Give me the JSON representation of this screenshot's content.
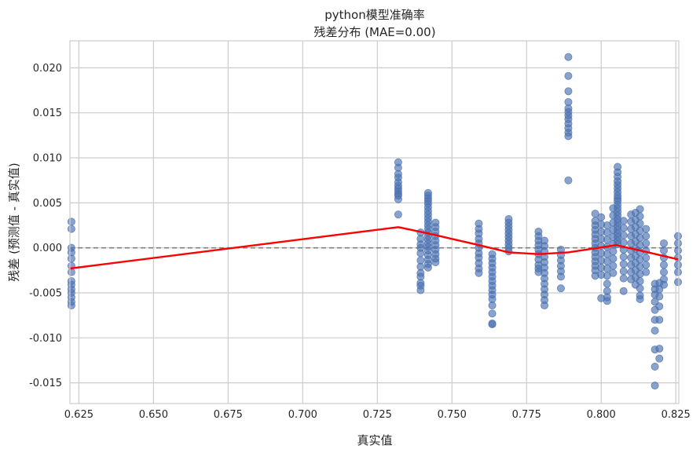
{
  "chart_data": {
    "type": "scatter",
    "title": "python模型准确率",
    "subtitle": "残差分布 (MAE=0.00)",
    "xlabel": "真实值",
    "ylabel": "残差 (预测值 - 真实值)",
    "xlim": [
      0.622,
      0.826
    ],
    "ylim": [
      -0.0173,
      0.023
    ],
    "grid": true,
    "x_ticks": [
      0.625,
      0.65,
      0.675,
      0.7,
      0.725,
      0.75,
      0.775,
      0.8,
      0.825
    ],
    "x_tick_labels": [
      "0.625",
      "0.650",
      "0.675",
      "0.700",
      "0.725",
      "0.750",
      "0.775",
      "0.800",
      "0.825"
    ],
    "y_ticks": [
      -0.015,
      -0.01,
      -0.005,
      0.0,
      0.005,
      0.01,
      0.015,
      0.02
    ],
    "y_tick_labels": [
      "-0.015",
      "-0.010",
      "-0.005",
      "0.000",
      "0.005",
      "0.010",
      "0.015",
      "0.020"
    ],
    "reference_line": {
      "y": 0.0,
      "style": "dashed",
      "color": "#808080"
    },
    "colors": {
      "points": "#4c72b0",
      "trend": "#ff0000",
      "grid": "#cccccc",
      "spine": "#cccccc"
    },
    "point_clusters": [
      {
        "x": 0.6225,
        "y": [
          0.0029,
          0.0021,
          0.0,
          -0.0005,
          -0.0012,
          -0.002,
          -0.0027,
          -0.0037,
          -0.0041,
          -0.0046,
          -0.005,
          -0.0055,
          -0.006,
          -0.0064
        ]
      },
      {
        "x": 0.732,
        "y": [
          0.0095,
          0.0089,
          0.0082,
          0.0078,
          0.0073,
          0.0069,
          0.0066,
          0.0063,
          0.006,
          0.0058,
          0.0054,
          0.0037
        ]
      },
      {
        "x": 0.7395,
        "y": [
          0.0017,
          0.001,
          0.0004,
          0.0,
          -0.0006,
          -0.0014,
          -0.0021,
          -0.0028,
          -0.0032,
          -0.0039,
          -0.0042,
          -0.0047
        ]
      },
      {
        "x": 0.742,
        "y": [
          0.0061,
          0.0058,
          0.0055,
          0.0052,
          0.0049,
          0.0045,
          0.0041,
          0.0037,
          0.0033,
          0.0029,
          0.0025,
          0.0021,
          0.0017,
          0.0013,
          0.0009,
          0.0005,
          0.0001,
          -0.0003,
          -0.0008,
          -0.0013,
          -0.0018,
          -0.0022
        ]
      },
      {
        "x": 0.7445,
        "y": [
          0.0028,
          0.0023,
          0.0018,
          0.0013,
          0.0008,
          0.0003,
          -0.0002,
          -0.0007,
          -0.0012,
          -0.0016
        ]
      },
      {
        "x": 0.759,
        "y": [
          0.0027,
          0.0021,
          0.0016,
          0.001,
          0.0005,
          0.0,
          -0.0006,
          -0.0011,
          -0.0017,
          -0.0023,
          -0.0028
        ]
      },
      {
        "x": 0.7635,
        "y": [
          -0.0007,
          -0.0012,
          -0.0017,
          -0.0022,
          -0.0027,
          -0.0032,
          -0.0037,
          -0.0042,
          -0.0047,
          -0.0052,
          -0.0057,
          -0.0064,
          -0.0073,
          -0.0084,
          -0.0085
        ]
      },
      {
        "x": 0.769,
        "y": [
          0.0032,
          0.0028,
          0.0024,
          0.002,
          0.0016,
          0.0012,
          0.0008,
          0.0004,
          0.0,
          -0.0004
        ]
      },
      {
        "x": 0.779,
        "y": [
          0.0018,
          0.0013,
          0.0008,
          0.0003,
          -0.0002,
          -0.0007,
          -0.0013,
          -0.0019,
          -0.0023,
          -0.0027
        ]
      },
      {
        "x": 0.781,
        "y": [
          0.0008,
          0.0002,
          -0.0004,
          -0.001,
          -0.0016,
          -0.0022,
          -0.0028,
          -0.0034,
          -0.004,
          -0.0046,
          -0.0052,
          -0.0058,
          -0.0064
        ]
      },
      {
        "x": 0.7865,
        "y": [
          -0.0002,
          -0.0008,
          -0.0014,
          -0.002,
          -0.0026,
          -0.0032,
          -0.0045
        ]
      },
      {
        "x": 0.789,
        "y": [
          0.0212,
          0.0191,
          0.0174,
          0.0162,
          0.0155,
          0.0151,
          0.0147,
          0.0143,
          0.0138,
          0.0133,
          0.0128,
          0.0124,
          0.0075
        ]
      },
      {
        "x": 0.798,
        "y": [
          0.0038,
          0.003,
          0.0025,
          0.002,
          0.0015,
          0.001,
          0.0005,
          0.0,
          -0.0005,
          -0.001,
          -0.0015,
          -0.002,
          -0.0025,
          -0.0031
        ]
      },
      {
        "x": 0.8,
        "y": [
          0.0034,
          0.0026,
          0.0018,
          0.001,
          0.0002,
          -0.0006,
          -0.0014,
          -0.0022,
          -0.003,
          -0.0056
        ]
      },
      {
        "x": 0.802,
        "y": [
          0.0025,
          0.0017,
          0.0009,
          0.0001,
          -0.0007,
          -0.0015,
          -0.0023,
          -0.0031,
          -0.004,
          -0.0048,
          -0.0055,
          -0.0059
        ]
      },
      {
        "x": 0.804,
        "y": [
          0.0044,
          0.0036,
          0.0028,
          0.002,
          0.0012,
          0.0004,
          -0.0004,
          -0.0012,
          -0.002,
          -0.0028
        ]
      },
      {
        "x": 0.8055,
        "y": [
          0.009,
          0.0084,
          0.0079,
          0.0074,
          0.007,
          0.0066,
          0.0062,
          0.0058,
          0.0055,
          0.0052,
          0.0048,
          0.0044,
          0.004,
          0.0036,
          0.0032,
          0.0028,
          0.0024,
          0.002,
          0.0016,
          0.0012,
          0.0008,
          0.0004
        ]
      },
      {
        "x": 0.8075,
        "y": [
          0.003,
          0.0022,
          0.0014,
          0.0006,
          -0.0002,
          -0.001,
          -0.0018,
          -0.0026,
          -0.0034,
          -0.0048
        ]
      },
      {
        "x": 0.81,
        "y": [
          0.0037,
          0.0029,
          0.0021,
          0.0013,
          0.0005,
          -0.0003,
          -0.0011,
          -0.0019,
          -0.0027,
          -0.0035
        ]
      },
      {
        "x": 0.8115,
        "y": [
          0.0039,
          0.0031,
          0.0023,
          0.0015,
          0.0007,
          -0.0001,
          -0.0009,
          -0.0017,
          -0.0025,
          -0.0033,
          -0.0041
        ]
      },
      {
        "x": 0.813,
        "y": [
          0.0043,
          0.0035,
          0.0027,
          0.0019,
          0.0011,
          0.0003,
          -0.0005,
          -0.0013,
          -0.0021,
          -0.0029,
          -0.0037,
          -0.0045,
          -0.0053,
          -0.0057
        ]
      },
      {
        "x": 0.815,
        "y": [
          0.0021,
          0.0013,
          0.0005,
          -0.0003,
          -0.0011,
          -0.0019,
          -0.0027
        ]
      },
      {
        "x": 0.818,
        "y": [
          -0.004,
          -0.0046,
          -0.0052,
          -0.006,
          -0.0069,
          -0.008,
          -0.0092,
          -0.0113,
          -0.0132,
          -0.0153
        ]
      },
      {
        "x": 0.8195,
        "y": [
          -0.0039,
          -0.0046,
          -0.0054,
          -0.0065,
          -0.008,
          -0.0112,
          -0.0123
        ]
      },
      {
        "x": 0.821,
        "y": [
          0.0005,
          -0.0003,
          -0.0011,
          -0.0019,
          -0.0027,
          -0.0035,
          -0.0041
        ]
      },
      {
        "x": 0.826,
        "y": [
          0.0013,
          0.0005,
          -0.0003,
          -0.0011,
          -0.0019,
          -0.0027,
          -0.0038
        ]
      }
    ],
    "trend_line": {
      "x": [
        0.622,
        0.732,
        0.742,
        0.759,
        0.769,
        0.779,
        0.789,
        0.799,
        0.805,
        0.813,
        0.826
      ],
      "y": [
        -0.0023,
        0.0023,
        0.0016,
        0.0003,
        -0.0005,
        -0.0007,
        -0.0005,
        0.0,
        0.0003,
        -0.0003,
        -0.0013
      ]
    }
  }
}
